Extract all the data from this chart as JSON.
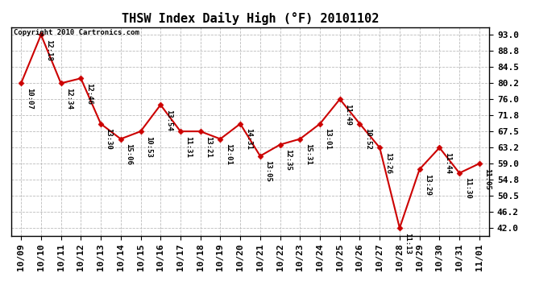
{
  "title": "THSW Index Daily High (°F) 20101102",
  "copyright": "Copyright 2010 Cartronics.com",
  "x_labels": [
    "10/09",
    "10/10",
    "10/11",
    "10/12",
    "10/13",
    "10/14",
    "10/15",
    "10/16",
    "10/17",
    "10/18",
    "10/19",
    "10/20",
    "10/21",
    "10/22",
    "10/23",
    "10/24",
    "10/25",
    "10/26",
    "10/27",
    "10/28",
    "10/29",
    "10/30",
    "10/31",
    "11/01"
  ],
  "y_values": [
    80.2,
    93.0,
    80.2,
    81.5,
    69.5,
    65.5,
    67.5,
    74.5,
    67.5,
    67.5,
    65.5,
    69.5,
    61.0,
    64.0,
    65.5,
    69.5,
    76.0,
    69.5,
    63.2,
    42.0,
    57.5,
    63.2,
    56.5,
    59.0
  ],
  "time_labels": [
    "10:07",
    "12:18",
    "12:34",
    "12:46",
    "13:30",
    "15:06",
    "10:53",
    "13:54",
    "11:31",
    "13:21",
    "12:01",
    "14:31",
    "13:05",
    "12:35",
    "15:31",
    "13:01",
    "11:49",
    "10:52",
    "13:26",
    "11:13",
    "13:29",
    "11:44",
    "11:30",
    "11:05"
  ],
  "y_ticks": [
    42.0,
    46.2,
    50.5,
    54.8,
    59.0,
    63.2,
    67.5,
    71.8,
    76.0,
    80.2,
    84.5,
    88.8,
    93.0
  ],
  "ylim": [
    40.0,
    95.0
  ],
  "line_color": "#cc0000",
  "marker_color": "#cc0000",
  "grid_color": "#bbbbbb",
  "bg_color": "#ffffff",
  "plot_bg_color": "#ffffff",
  "title_fontsize": 11,
  "tick_fontsize": 8,
  "annot_fontsize": 6.5
}
